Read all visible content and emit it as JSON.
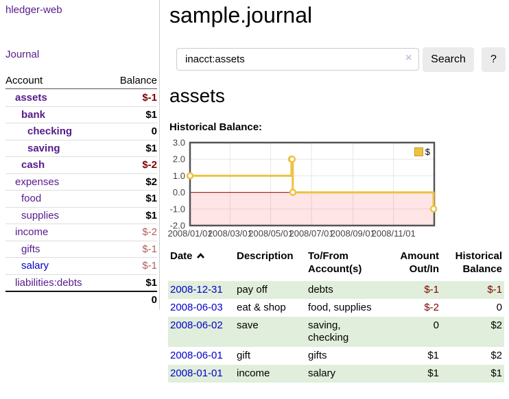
{
  "app": {
    "brand": "hledger-web"
  },
  "nav": {
    "journal": "Journal"
  },
  "sidebar": {
    "header": {
      "account": "Account",
      "balance": "Balance"
    },
    "rows": [
      {
        "name": "assets",
        "balance": "$-1",
        "depth": 1,
        "bold": true,
        "neg": "strong"
      },
      {
        "name": "bank",
        "balance": "$1",
        "depth": 2,
        "bold": true,
        "neg": ""
      },
      {
        "name": "checking",
        "balance": "0",
        "depth": 3,
        "bold": true,
        "neg": ""
      },
      {
        "name": "saving",
        "balance": "$1",
        "depth": 3,
        "bold": true,
        "neg": ""
      },
      {
        "name": "cash",
        "balance": "$-2",
        "depth": 2,
        "bold": true,
        "neg": "strong"
      },
      {
        "name": "expenses",
        "balance": "$2",
        "depth": 1,
        "bold": false,
        "neg": ""
      },
      {
        "name": "food",
        "balance": "$1",
        "depth": 2,
        "bold": false,
        "neg": ""
      },
      {
        "name": "supplies",
        "balance": "$1",
        "depth": 2,
        "bold": false,
        "neg": ""
      },
      {
        "name": "income",
        "balance": "$-2",
        "depth": 1,
        "bold": false,
        "neg": "soft"
      },
      {
        "name": "gifts",
        "balance": "$-1",
        "depth": 2,
        "bold": false,
        "neg": "soft"
      },
      {
        "name": "salary",
        "balance": "$-1",
        "depth": 2,
        "bold": false,
        "neg": "soft",
        "blue": true
      },
      {
        "name": "liabilities:debts",
        "balance": "$1",
        "depth": 1,
        "bold": false,
        "neg": ""
      }
    ],
    "total": "0"
  },
  "main": {
    "title": "sample.journal",
    "search": {
      "value": "inacct:assets",
      "clear_icon": "×",
      "search_button": "Search",
      "help_button": "?"
    },
    "account_heading": "assets"
  },
  "chart_data": {
    "type": "line",
    "title": "Historical Balance:",
    "series": [
      {
        "name": "$",
        "color": "#edc240",
        "marker_fill": "#ffffff",
        "steps": true,
        "points": [
          [
            "2008-01-01",
            1.0
          ],
          [
            "2008-06-01",
            2.0
          ],
          [
            "2008-06-02",
            2.0
          ],
          [
            "2008-06-03",
            0.0
          ],
          [
            "2008-12-31",
            -1.0
          ]
        ]
      }
    ],
    "x_ticks": [
      "2008/01/01",
      "2008/03/01",
      "2008/05/01",
      "2008/07/01",
      "2008/09/01",
      "2008/11/01"
    ],
    "x_range": [
      "2008-01-01",
      "2009-01-01"
    ],
    "y_ticks": [
      3.0,
      2.0,
      1.0,
      0.0,
      -1.0,
      -2.0
    ],
    "ylim": [
      -2.0,
      3.0
    ],
    "grid": true,
    "legend_position": "top-right",
    "grid_color": "#e6e6e6",
    "border_color": "#545454",
    "zero_line_color": "#8b0000",
    "negative_fill": "rgba(255,0,0,0.10)",
    "tick_label_color": "#444444"
  },
  "register": {
    "headers": {
      "date": "Date",
      "description": "Description",
      "tofrom": "To/From Account(s)",
      "amount": "Amount Out/In",
      "balance": "Historical Balance"
    },
    "rows": [
      {
        "date": "2008-12-31",
        "description": "pay off",
        "accounts": "debts",
        "amount": "$-1",
        "balance": "$-1",
        "amount_neg": true,
        "balance_neg": true
      },
      {
        "date": "2008-06-03",
        "description": "eat & shop",
        "accounts": "food, supplies",
        "amount": "$-2",
        "balance": "0",
        "amount_neg": true,
        "balance_neg": false
      },
      {
        "date": "2008-06-02",
        "description": "save",
        "accounts": "saving,\nchecking",
        "amount": "0",
        "balance": "$2",
        "amount_neg": false,
        "balance_neg": false
      },
      {
        "date": "2008-06-01",
        "description": "gift",
        "accounts": "gifts",
        "amount": "$1",
        "balance": "$2",
        "amount_neg": false,
        "balance_neg": false
      },
      {
        "date": "2008-01-01",
        "description": "income",
        "accounts": "salary",
        "amount": "$1",
        "balance": "$1",
        "amount_neg": false,
        "balance_neg": false
      }
    ]
  },
  "colors": {
    "link_purple": "#551a8b",
    "link_blue": "#0000cc",
    "negative_strong": "#800000",
    "negative_soft": "#b05d5d",
    "row_stripe_green": "#e0eedb",
    "series_gold": "#edc240"
  }
}
